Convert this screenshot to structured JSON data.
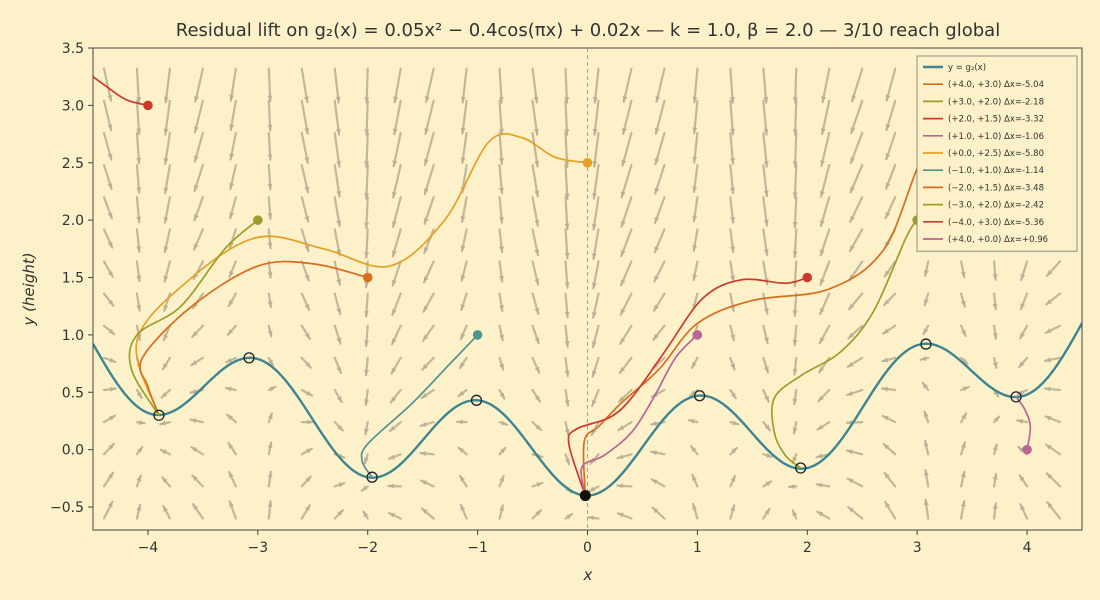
{
  "chart_data": {
    "type": "line",
    "title": "Residual lift on g₂(x) = 0.05x² − 0.4cos(πx) + 0.02x — k = 1.0, β = 2.0 — 3/10 reach global",
    "xlabel": "x",
    "ylabel": "y  (height)",
    "xlim": [
      -4.5,
      4.5
    ],
    "ylim": [
      -0.7,
      3.5
    ],
    "xticks": [
      -4,
      -3,
      -2,
      -1,
      0,
      1,
      2,
      3,
      4
    ],
    "yticks": [
      -0.5,
      0.0,
      0.5,
      1.0,
      1.5,
      2.0,
      2.5,
      3.0,
      3.5
    ],
    "grid": false,
    "legend_position": "top-right",
    "background_color": "#fcf1c9",
    "vector_field_color": "#b8ad94",
    "curve": {
      "label": "y = g₂(x)",
      "color": "#3d8591",
      "function": {
        "a": 0.05,
        "b": -0.4,
        "c": 0.02
      }
    },
    "global_minimum": {
      "x": -0.02,
      "y": -0.4
    },
    "critical_points": [
      {
        "x": -3.9,
        "y": 0.3
      },
      {
        "x": -3.08,
        "y": 0.8
      },
      {
        "x": -1.96,
        "y": -0.24
      },
      {
        "x": -1.01,
        "y": 0.43
      },
      {
        "x": 1.02,
        "y": 0.47
      },
      {
        "x": 1.94,
        "y": -0.16
      },
      {
        "x": 3.08,
        "y": 0.92
      },
      {
        "x": 3.9,
        "y": 0.46
      }
    ],
    "series": [
      {
        "name": "(+4.0, +3.0)",
        "dx_label": "Δx=-5.04",
        "color": "#d96d1f",
        "points": [
          [
            4.0,
            3.0
          ],
          [
            3.4,
            2.95
          ],
          [
            3.05,
            2.55
          ],
          [
            2.7,
            1.75
          ],
          [
            2.2,
            1.4
          ],
          [
            1.5,
            1.3
          ],
          [
            1.0,
            1.1
          ],
          [
            0.65,
            0.7
          ],
          [
            0.3,
            0.4
          ],
          [
            0.1,
            0.2
          ],
          [
            -0.03,
            0.07
          ],
          [
            -0.02,
            -0.4
          ]
        ]
      },
      {
        "name": "(+3.0, +2.0)",
        "dx_label": "Δx=-2.18",
        "color": "#9b9e28",
        "points": [
          [
            3.0,
            2.0
          ],
          [
            2.9,
            1.85
          ],
          [
            2.6,
            1.2
          ],
          [
            2.3,
            0.85
          ],
          [
            1.95,
            0.65
          ],
          [
            1.7,
            0.45
          ],
          [
            1.7,
            0.15
          ],
          [
            1.8,
            -0.05
          ],
          [
            1.94,
            -0.16
          ]
        ]
      },
      {
        "name": "(+2.0, +1.5)",
        "dx_label": "Δx=-3.32",
        "color": "#cc3a2e",
        "points": [
          [
            2.0,
            1.5
          ],
          [
            1.8,
            1.45
          ],
          [
            1.4,
            1.48
          ],
          [
            1.05,
            1.32
          ],
          [
            0.7,
            0.85
          ],
          [
            0.4,
            0.45
          ],
          [
            0.2,
            0.28
          ],
          [
            -0.1,
            0.18
          ],
          [
            -0.17,
            0.05
          ],
          [
            -0.02,
            -0.4
          ]
        ]
      },
      {
        "name": "(+1.0, +1.0)",
        "dx_label": "Δx=-1.06",
        "color": "#b86694",
        "points": [
          [
            1.0,
            1.0
          ],
          [
            0.8,
            0.8
          ],
          [
            0.6,
            0.45
          ],
          [
            0.4,
            0.15
          ],
          [
            0.15,
            -0.05
          ],
          [
            -0.05,
            -0.15
          ],
          [
            -0.02,
            -0.4
          ]
        ]
      },
      {
        "name": "(+0.0, +2.5)",
        "dx_label": "Δx=-5.80",
        "color": "#e3a125",
        "points": [
          [
            0.0,
            2.5
          ],
          [
            -0.3,
            2.55
          ],
          [
            -0.6,
            2.72
          ],
          [
            -0.9,
            2.68
          ],
          [
            -1.3,
            2.0
          ],
          [
            -1.8,
            1.6
          ],
          [
            -2.4,
            1.75
          ],
          [
            -3.0,
            1.85
          ],
          [
            -3.6,
            1.5
          ],
          [
            -4.1,
            0.95
          ],
          [
            -3.9,
            0.3
          ]
        ]
      },
      {
        "name": "(−1.0, +1.0)",
        "dx_label": "Δx=-1.14",
        "color": "#52938f",
        "points": [
          [
            -1.0,
            1.0
          ],
          [
            -1.25,
            0.75
          ],
          [
            -1.6,
            0.4
          ],
          [
            -2.0,
            0.05
          ],
          [
            -2.05,
            -0.1
          ],
          [
            -1.96,
            -0.24
          ]
        ]
      },
      {
        "name": "(−2.0, +1.5)",
        "dx_label": "Δx=-3.48",
        "color": "#d96d1f",
        "points": [
          [
            -2.0,
            1.5
          ],
          [
            -2.5,
            1.62
          ],
          [
            -3.0,
            1.6
          ],
          [
            -3.6,
            1.25
          ],
          [
            -4.05,
            0.8
          ],
          [
            -4.0,
            0.55
          ],
          [
            -3.9,
            0.3
          ]
        ]
      },
      {
        "name": "(−3.0, +2.0)",
        "dx_label": "Δx=-2.42",
        "color": "#9b9e28",
        "points": [
          [
            -3.0,
            2.0
          ],
          [
            -3.3,
            1.75
          ],
          [
            -3.7,
            1.25
          ],
          [
            -4.1,
            1.0
          ],
          [
            -4.15,
            0.7
          ],
          [
            -3.9,
            0.3
          ]
        ]
      },
      {
        "name": "(−4.0, +3.0)",
        "dx_label": "Δx=-5.36",
        "color": "#cc3a2e",
        "points": [
          [
            -4.0,
            3.0
          ],
          [
            -4.2,
            3.05
          ],
          [
            -4.4,
            3.18
          ],
          [
            -4.5,
            3.25
          ]
        ]
      },
      {
        "name": "(+4.0, +0.0)",
        "dx_label": "Δx=+0.96",
        "color": "#b86694",
        "points": [
          [
            4.0,
            0.0
          ],
          [
            4.03,
            0.2
          ],
          [
            3.98,
            0.35
          ],
          [
            3.9,
            0.46
          ]
        ]
      }
    ]
  }
}
